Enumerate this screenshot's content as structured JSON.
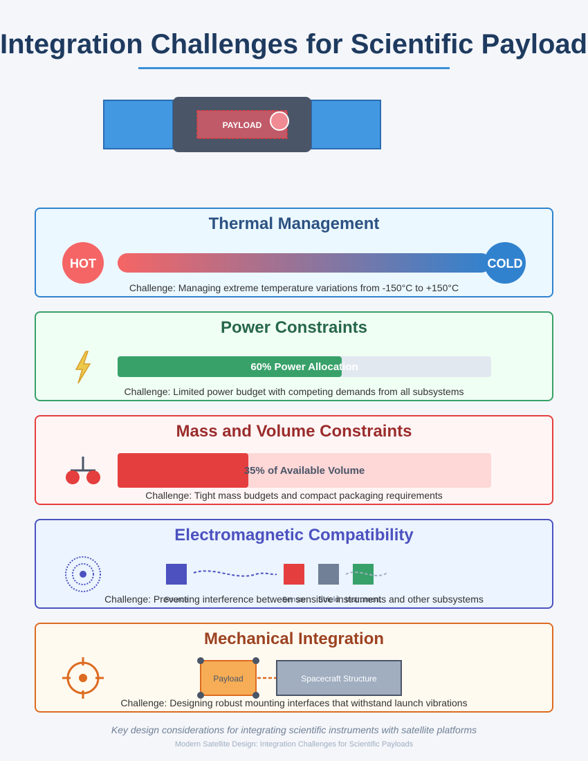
{
  "title": "Integration Challenges for Scientific Payloads",
  "satellite": {
    "payload_label": "PAYLOAD"
  },
  "thermal": {
    "heading": "Thermal Management",
    "hot_label": "HOT",
    "cold_label": "COLD",
    "challenge": "Challenge: Managing extreme temperature variations from -150°C to +150°C",
    "colors": {
      "hot": "#f56565",
      "cold": "#3182ce"
    }
  },
  "power": {
    "heading": "Power Constraints",
    "bar_label": "60% Power Allocation",
    "level": 0.6,
    "challenge": "Challenge: Limited power budget with competing demands from all subsystems",
    "icon": "lightning-icon"
  },
  "mass": {
    "heading": "Mass and Volume Constraints",
    "bar_label": "35% of Available Volume",
    "level": 0.35,
    "challenge": "Challenge: Tight mass budgets and compact packaging requirements",
    "icon": "balance-scale-icon"
  },
  "emc": {
    "heading": "Electromagnetic Compatibility",
    "labels": [
      "Source",
      "Sensor",
      "Shield",
      "Instrument"
    ],
    "challenge": "Challenge: Preventing interference between sensitive instruments and other subsystems",
    "icon": "signal-waves-icon"
  },
  "mechanical": {
    "heading": "Mechanical Integration",
    "payload_label": "Payload",
    "structure_label": "Spacecraft Structure",
    "challenge": "Challenge: Designing robust mounting interfaces that withstand launch vibrations",
    "icon": "crosshair-icon"
  },
  "footer": {
    "caption": "Key design considerations for integrating scientific instruments with satellite platforms",
    "credit": "Modern Satellite Design: Integration Challenges for Scientific Payloads"
  }
}
